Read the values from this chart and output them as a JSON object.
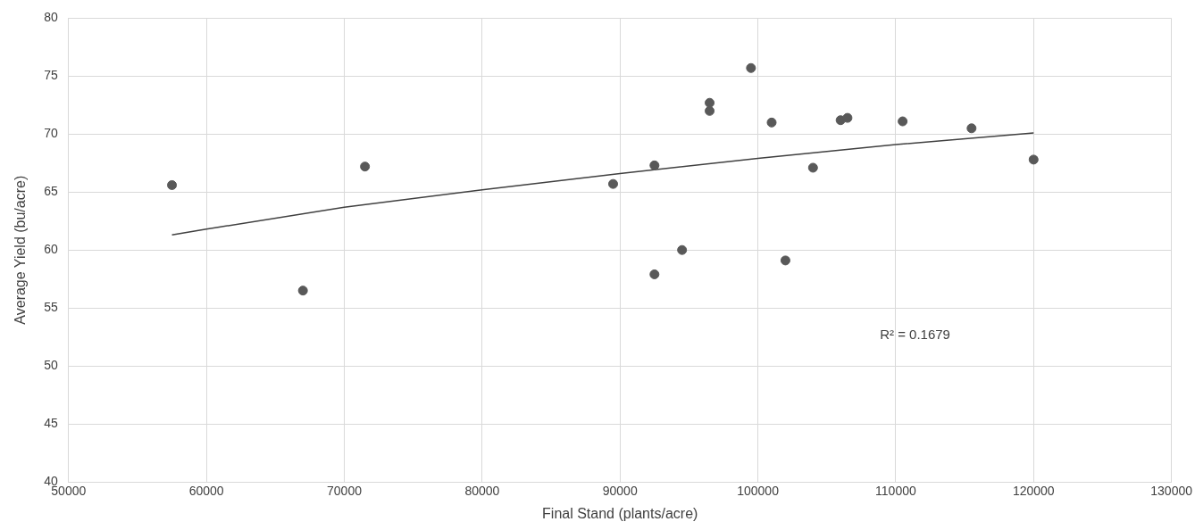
{
  "chart_data": {
    "type": "scatter",
    "xlabel": "Final Stand (plants/acre)",
    "ylabel": "Average Yield (bu/acre)",
    "xlim": [
      50000,
      130000
    ],
    "xticks": [
      50000,
      60000,
      70000,
      80000,
      90000,
      100000,
      110000,
      120000,
      130000
    ],
    "ylim": [
      40,
      80
    ],
    "yticks": [
      40,
      45,
      50,
      55,
      60,
      65,
      70,
      75,
      80
    ],
    "grid": true,
    "legend": false,
    "marker": "circle",
    "series": [
      {
        "color": "#595959",
        "x": [
          57500,
          67000,
          71500,
          89500,
          92500,
          92500,
          94500,
          96500,
          96500,
          99500,
          101000,
          102000,
          104000,
          106000,
          106500,
          110500,
          115500,
          120000
        ],
        "values": [
          65.6,
          56.5,
          67.2,
          65.7,
          67.3,
          57.9,
          60.0,
          72.7,
          72.0,
          75.7,
          71.0,
          59.1,
          67.1,
          71.2,
          71.4,
          71.1,
          70.5,
          67.8
        ]
      },
      {
        "type": "line",
        "color": "#404040",
        "marker": "none",
        "x": [
          57500,
          60000,
          70000,
          80000,
          90000,
          100000,
          110000,
          120000
        ],
        "values": [
          61.3,
          61.8,
          63.7,
          65.2,
          66.6,
          67.9,
          69.1,
          70.1
        ]
      }
    ],
    "annotations": [
      "R² = 0.1679"
    ]
  }
}
